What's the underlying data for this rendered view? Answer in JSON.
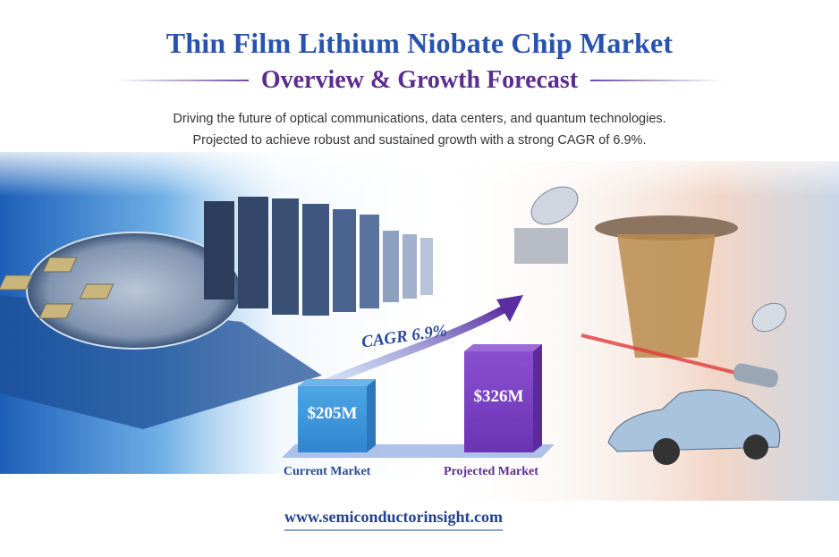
{
  "header": {
    "title": "Thin Film Lithium Niobate Chip Market",
    "subtitle": "Overview & Growth Forecast",
    "tagline_1": "Driving the future of optical communications, data centers, and quantum technologies.",
    "tagline_2": "Projected to achieve robust and sustained growth with a strong CAGR of 6.9%."
  },
  "market": {
    "cagr_label": "CAGR 6.9%",
    "bars": [
      {
        "label": "Current Market",
        "value_label": "$205M",
        "value": 205,
        "color": "#3a95d8"
      },
      {
        "label": "Projected Market",
        "value_label": "$326M",
        "value": 326,
        "color": "#7a3fc0"
      }
    ]
  },
  "footer": {
    "url": "www.semiconductorinsight.com"
  },
  "colors": {
    "title": "#2753ae",
    "subtitle": "#5b2d8e"
  }
}
